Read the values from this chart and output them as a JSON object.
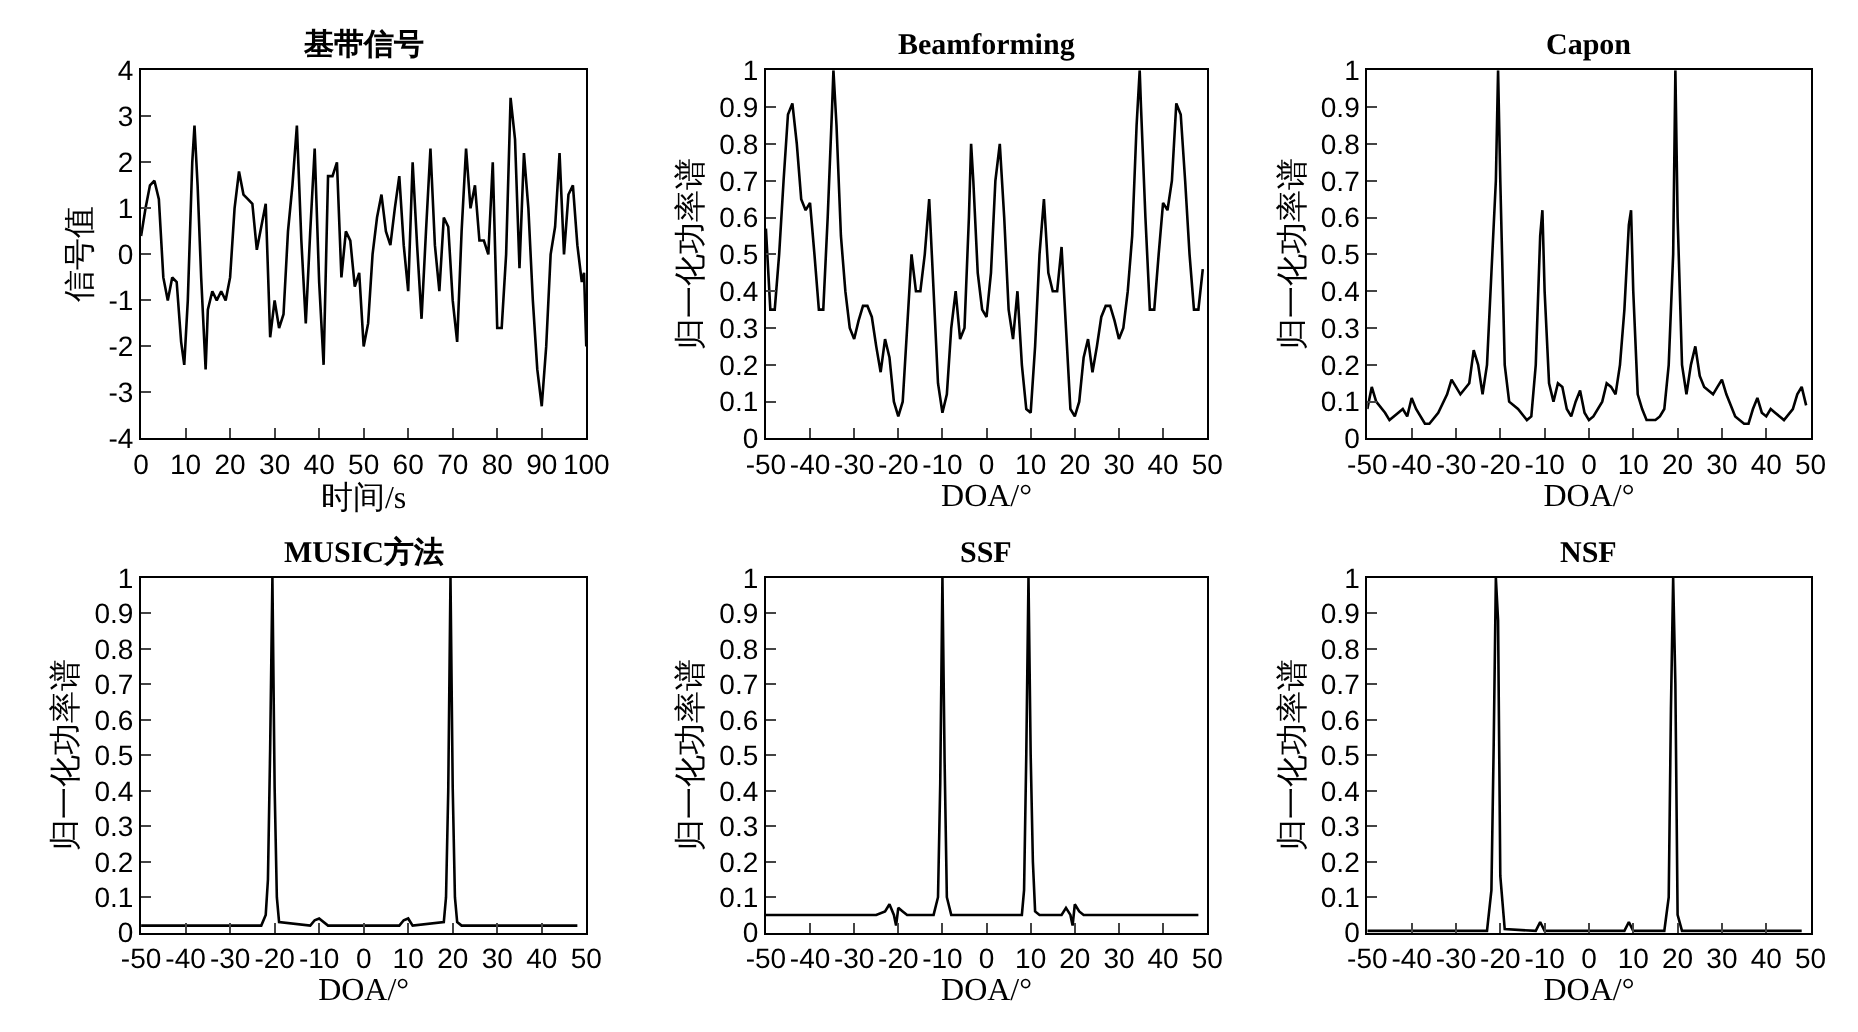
{
  "chart_data": [
    {
      "type": "line",
      "title": "基带信号",
      "xlabel": "时间/s",
      "ylabel": "信号值",
      "color": "#000000",
      "grid": false,
      "x": [
        0,
        1,
        2,
        3,
        4,
        5,
        6,
        7,
        8,
        9,
        9.7,
        10.5,
        11,
        11.5,
        12,
        12.7,
        13.5,
        14.5,
        15,
        16,
        17,
        18,
        19,
        20,
        21,
        22,
        23,
        24,
        25,
        26,
        27,
        28,
        29,
        30,
        31,
        32,
        33,
        34,
        35,
        36,
        37,
        38,
        39,
        40,
        41,
        42,
        43,
        44,
        45,
        46,
        47,
        48,
        49,
        50,
        51,
        52,
        53,
        54,
        55,
        56,
        57,
        58,
        59,
        60,
        61,
        62,
        63,
        64,
        65,
        66,
        67,
        68,
        69,
        70,
        71,
        72,
        73,
        74,
        75,
        76,
        77,
        78,
        79,
        80,
        81,
        82,
        83,
        84,
        85,
        86,
        87,
        88,
        89,
        90,
        91,
        92,
        93,
        94,
        95,
        96,
        97,
        98,
        99,
        99.5,
        100
      ],
      "values": [
        0.4,
        1.0,
        1.5,
        1.6,
        1.2,
        -0.5,
        -1.0,
        -0.5,
        -0.6,
        -1.9,
        -2.4,
        -1.0,
        0.5,
        2.0,
        2.8,
        1.5,
        -0.5,
        -2.5,
        -1.2,
        -0.8,
        -1.0,
        -0.8,
        -1.0,
        -0.5,
        1.0,
        1.8,
        1.3,
        1.2,
        1.1,
        0.1,
        0.6,
        1.1,
        -1.8,
        -1.0,
        -1.6,
        -1.3,
        0.5,
        1.5,
        2.8,
        0.3,
        -1.5,
        0.5,
        2.3,
        -0.6,
        -2.4,
        1.7,
        1.7,
        2.0,
        -0.5,
        0.5,
        0.3,
        -0.7,
        -0.4,
        -2.0,
        -1.5,
        0.0,
        0.8,
        1.3,
        0.5,
        0.2,
        1.0,
        1.7,
        0.2,
        -0.8,
        2.0,
        0.2,
        -1.4,
        0.5,
        2.3,
        0.2,
        -0.8,
        0.8,
        0.6,
        -1.0,
        -1.9,
        0.5,
        2.3,
        1.0,
        1.5,
        0.3,
        0.3,
        0.0,
        2.0,
        -1.6,
        -1.6,
        0.0,
        3.4,
        2.5,
        -0.3,
        2.2,
        1.0,
        -1.0,
        -2.5,
        -3.3,
        -2.0,
        0.0,
        0.6,
        2.2,
        0.0,
        1.3,
        1.5,
        0.2,
        -0.6,
        -0.4,
        -2.0
      ],
      "xlim": [
        0,
        100
      ],
      "ylim": [
        -4,
        4
      ],
      "xticks": [
        0,
        10,
        20,
        30,
        40,
        50,
        60,
        70,
        80,
        90,
        100
      ],
      "yticks": [
        -4,
        -3,
        -2,
        -1,
        0,
        1,
        2,
        3,
        4
      ]
    },
    {
      "type": "line",
      "title": "Beamforming",
      "xlabel": "DOA/°",
      "ylabel": "归一化功率谱",
      "color": "#000000",
      "grid": false,
      "x": [
        -50,
        -49,
        -48,
        -47,
        -46,
        -45,
        -44,
        -43,
        -42,
        -41,
        -40,
        -39,
        -38,
        -37,
        -36,
        -35,
        -34.7,
        -34,
        -33,
        -32,
        -31,
        -30,
        -29,
        -28,
        -27,
        -26,
        -25,
        -24,
        -23,
        -22,
        -21,
        -20,
        -19,
        -18,
        -17,
        -16,
        -15,
        -14,
        -13,
        -12,
        -11,
        -10,
        -9,
        -8,
        -7,
        -6,
        -5,
        -4,
        -3.5,
        -3,
        -2,
        -1,
        0,
        1,
        2,
        3,
        4,
        5,
        6,
        7,
        8,
        9,
        10,
        11,
        12,
        13,
        14,
        15,
        16,
        17,
        18,
        19,
        20,
        21,
        22,
        23,
        24,
        25,
        26,
        27,
        28,
        29,
        30,
        31,
        32,
        33,
        34,
        34.7,
        35,
        36,
        37,
        38,
        39,
        40,
        41,
        42,
        43,
        44,
        45,
        46,
        47,
        48,
        49
      ],
      "values": [
        0.57,
        0.35,
        0.35,
        0.5,
        0.7,
        0.88,
        0.91,
        0.8,
        0.65,
        0.62,
        0.64,
        0.5,
        0.35,
        0.35,
        0.6,
        0.9,
        1.0,
        0.85,
        0.55,
        0.4,
        0.3,
        0.27,
        0.32,
        0.36,
        0.36,
        0.33,
        0.25,
        0.18,
        0.27,
        0.22,
        0.1,
        0.06,
        0.1,
        0.3,
        0.5,
        0.4,
        0.4,
        0.5,
        0.65,
        0.4,
        0.15,
        0.07,
        0.12,
        0.3,
        0.4,
        0.27,
        0.3,
        0.6,
        0.8,
        0.7,
        0.45,
        0.35,
        0.33,
        0.45,
        0.7,
        0.8,
        0.6,
        0.35,
        0.27,
        0.4,
        0.2,
        0.08,
        0.07,
        0.25,
        0.5,
        0.65,
        0.45,
        0.4,
        0.4,
        0.52,
        0.3,
        0.08,
        0.06,
        0.1,
        0.22,
        0.27,
        0.18,
        0.25,
        0.33,
        0.36,
        0.36,
        0.32,
        0.27,
        0.3,
        0.4,
        0.55,
        0.85,
        1.0,
        0.9,
        0.6,
        0.35,
        0.35,
        0.5,
        0.64,
        0.62,
        0.7,
        0.91,
        0.88,
        0.7,
        0.5,
        0.35,
        0.35,
        0.46
      ],
      "xlim": [
        -50,
        50
      ],
      "ylim": [
        0,
        1
      ],
      "xticks": [
        -50,
        -40,
        -30,
        -20,
        -10,
        0,
        10,
        20,
        30,
        40,
        50
      ],
      "yticks": [
        0,
        0.1,
        0.2,
        0.3,
        0.4,
        0.5,
        0.6,
        0.7,
        0.8,
        0.9,
        1
      ]
    },
    {
      "type": "line",
      "title": "Capon",
      "xlabel": "DOA/°",
      "ylabel": "归一化功率谱",
      "color": "#000000",
      "grid": false,
      "x": [
        -50,
        -49,
        -48,
        -46,
        -45,
        -43,
        -42,
        -41,
        -40,
        -39,
        -37,
        -36,
        -34,
        -32,
        -31,
        -30,
        -29,
        -27,
        -26,
        -25,
        -24,
        -23,
        -22,
        -21,
        -20.5,
        -20,
        -19,
        -18,
        -16,
        -14,
        -13,
        -12,
        -11,
        -10.5,
        -10,
        -9,
        -8,
        -7,
        -6,
        -5,
        -4,
        -3,
        -2,
        -1,
        0,
        1,
        3,
        4,
        5,
        6,
        7,
        8,
        9,
        9.5,
        10,
        11,
        12,
        13,
        15,
        16,
        17,
        18,
        19,
        19.5,
        20,
        21,
        22,
        23,
        24,
        25,
        26,
        28,
        29,
        30,
        31,
        33,
        35,
        36,
        37,
        38,
        39,
        40,
        41,
        42,
        44,
        46,
        47,
        48,
        49
      ],
      "values": [
        0.08,
        0.14,
        0.1,
        0.07,
        0.05,
        0.07,
        0.08,
        0.06,
        0.11,
        0.08,
        0.04,
        0.04,
        0.07,
        0.12,
        0.16,
        0.14,
        0.12,
        0.15,
        0.24,
        0.2,
        0.12,
        0.2,
        0.45,
        0.7,
        1.0,
        0.7,
        0.2,
        0.1,
        0.08,
        0.05,
        0.06,
        0.2,
        0.55,
        0.62,
        0.4,
        0.15,
        0.1,
        0.15,
        0.14,
        0.08,
        0.06,
        0.1,
        0.13,
        0.07,
        0.05,
        0.06,
        0.1,
        0.15,
        0.14,
        0.12,
        0.2,
        0.35,
        0.58,
        0.62,
        0.4,
        0.12,
        0.08,
        0.05,
        0.05,
        0.06,
        0.08,
        0.2,
        0.5,
        1.0,
        0.6,
        0.2,
        0.12,
        0.2,
        0.25,
        0.17,
        0.14,
        0.12,
        0.14,
        0.16,
        0.12,
        0.06,
        0.04,
        0.04,
        0.08,
        0.11,
        0.07,
        0.06,
        0.08,
        0.07,
        0.05,
        0.08,
        0.12,
        0.14,
        0.09
      ],
      "xlim": [
        -50,
        50
      ],
      "ylim": [
        0,
        1
      ],
      "xticks": [
        -50,
        -40,
        -30,
        -20,
        -10,
        0,
        10,
        20,
        30,
        40,
        50
      ],
      "yticks": [
        0,
        0.1,
        0.2,
        0.3,
        0.4,
        0.5,
        0.6,
        0.7,
        0.8,
        0.9,
        1
      ]
    },
    {
      "type": "line",
      "title": "MUSIC方法",
      "xlabel": "DOA/°",
      "ylabel": "归一化功率谱",
      "color": "#000000",
      "grid": false,
      "x": [
        -50,
        -23,
        -22,
        -21.5,
        -21,
        -20.5,
        -20,
        -19.5,
        -19,
        -12,
        -11,
        -10,
        -8,
        8,
        9,
        10,
        11,
        18,
        18.5,
        19,
        19.5,
        20,
        20.5,
        21,
        22,
        48
      ],
      "values": [
        0.02,
        0.02,
        0.05,
        0.15,
        0.52,
        1.0,
        0.41,
        0.1,
        0.03,
        0.02,
        0.035,
        0.04,
        0.02,
        0.02,
        0.035,
        0.04,
        0.02,
        0.03,
        0.1,
        0.4,
        1.0,
        0.41,
        0.1,
        0.03,
        0.02,
        0.02
      ],
      "xlim": [
        -50,
        50
      ],
      "ylim": [
        0,
        1
      ],
      "xticks": [
        -50,
        -40,
        -30,
        -20,
        -10,
        0,
        10,
        20,
        30,
        40,
        50
      ],
      "yticks": [
        0,
        0.1,
        0.2,
        0.3,
        0.4,
        0.5,
        0.6,
        0.7,
        0.8,
        0.9,
        1
      ]
    },
    {
      "type": "line",
      "title": "SSF",
      "xlabel": "DOA/°",
      "ylabel": "归一化功率谱",
      "color": "#000000",
      "grid": false,
      "x": [
        -50,
        -25,
        -23,
        -22,
        -21,
        -20.5,
        -20,
        -19,
        -18,
        -12,
        -11,
        -10.5,
        -10,
        -9.5,
        -9,
        -8,
        8,
        8.5,
        9,
        9.5,
        10,
        10.5,
        11,
        12,
        17,
        18,
        19,
        19.5,
        20,
        21,
        22,
        23,
        48
      ],
      "values": [
        0.05,
        0.05,
        0.06,
        0.08,
        0.05,
        0.02,
        0.07,
        0.06,
        0.05,
        0.05,
        0.1,
        0.42,
        1.0,
        0.48,
        0.1,
        0.05,
        0.05,
        0.12,
        0.5,
        1.0,
        0.5,
        0.2,
        0.06,
        0.05,
        0.05,
        0.07,
        0.05,
        0.02,
        0.08,
        0.06,
        0.05,
        0.05,
        0.05
      ],
      "xlim": [
        -50,
        50
      ],
      "ylim": [
        0,
        1
      ],
      "xticks": [
        -50,
        -40,
        -30,
        -20,
        -10,
        0,
        10,
        20,
        30,
        40,
        50
      ],
      "yticks": [
        0,
        0.1,
        0.2,
        0.3,
        0.4,
        0.5,
        0.6,
        0.7,
        0.8,
        0.9,
        1
      ]
    },
    {
      "type": "line",
      "title": "NSF",
      "xlabel": "DOA/°",
      "ylabel": "归一化功率谱",
      "color": "#000000",
      "grid": false,
      "x": [
        -50,
        -23,
        -22,
        -21.5,
        -21,
        -20.5,
        -20,
        -19,
        -12,
        -11,
        -10,
        8,
        9,
        10,
        17,
        18,
        18.5,
        19,
        19.5,
        20,
        21,
        48
      ],
      "values": [
        0.005,
        0.005,
        0.12,
        0.52,
        1.0,
        0.88,
        0.16,
        0.01,
        0.005,
        0.03,
        0.005,
        0.005,
        0.03,
        0.005,
        0.005,
        0.1,
        0.63,
        1.0,
        0.7,
        0.05,
        0.005,
        0.005
      ],
      "xlim": [
        -50,
        50
      ],
      "ylim": [
        0,
        1
      ],
      "xticks": [
        -50,
        -40,
        -30,
        -20,
        -10,
        0,
        10,
        20,
        30,
        40,
        50
      ],
      "yticks": [
        0,
        0.1,
        0.2,
        0.3,
        0.4,
        0.5,
        0.6,
        0.7,
        0.8,
        0.9,
        1
      ]
    }
  ]
}
